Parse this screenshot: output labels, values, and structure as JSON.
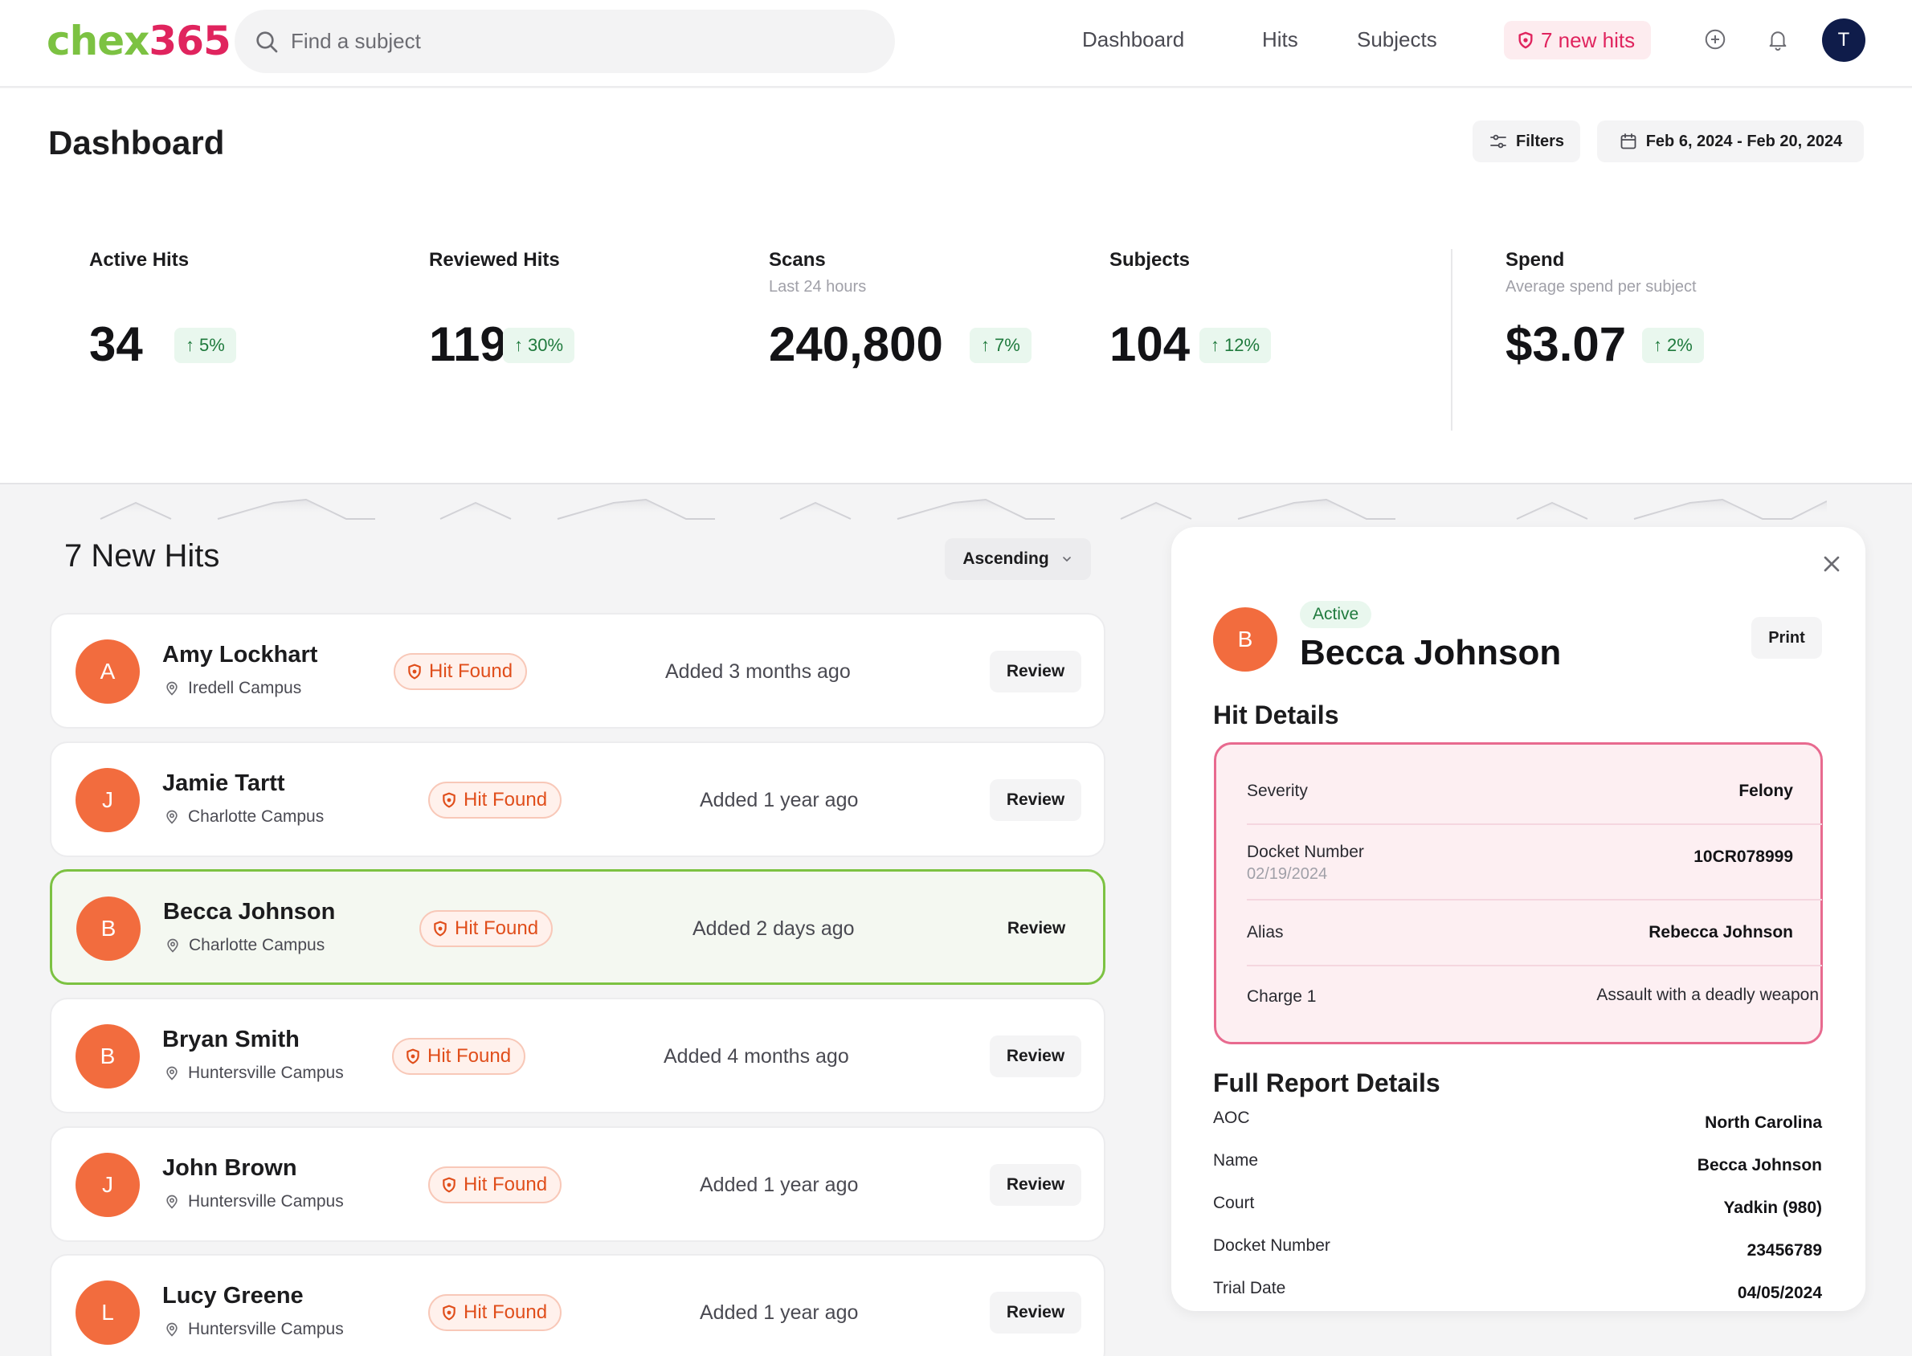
{
  "brand": {
    "part1": "chex",
    "part2": "365",
    "color1": "#7cc242",
    "color2": "#e0245e"
  },
  "search": {
    "placeholder": "Find a subject",
    "icon": "search-icon"
  },
  "nav": {
    "items": [
      "Dashboard",
      "Hits",
      "Subjects"
    ],
    "new_hits_label": "7 new hits",
    "icons": [
      "plus-circle-icon",
      "bell-icon"
    ],
    "avatar_initial": "T"
  },
  "header": {
    "title": "Dashboard",
    "filters_label": "Filters",
    "date_range": "Feb 6, 2024 - Feb 20, 2024"
  },
  "stats": [
    {
      "label": "Active Hits",
      "sub": "",
      "value": "34",
      "delta": "5%"
    },
    {
      "label": "Reviewed Hits",
      "sub": "",
      "value": "119",
      "delta": "30%"
    },
    {
      "label": "Scans",
      "sub": "Last 24 hours",
      "value": "240,800",
      "delta": "7%"
    },
    {
      "label": "Subjects",
      "sub": "",
      "value": "104",
      "delta": "12%"
    },
    {
      "label": "Spend",
      "sub": "Average spend per subject",
      "value": "$3.07",
      "delta": "2%"
    }
  ],
  "hits": {
    "title": "7 New Hits",
    "sort_label": "Ascending",
    "badge_label": "Hit Found",
    "review_label": "Review",
    "items": [
      {
        "initial": "A",
        "name": "Amy Lockhart",
        "campus": "Iredell Campus",
        "added": "Added 3 months ago",
        "selected": false
      },
      {
        "initial": "J",
        "name": "Jamie Tartt",
        "campus": "Charlotte Campus",
        "added": "Added 1 year ago",
        "selected": false
      },
      {
        "initial": "B",
        "name": "Becca Johnson",
        "campus": "Charlotte Campus",
        "added": "Added 2 days ago",
        "selected": true
      },
      {
        "initial": "B",
        "name": "Bryan Smith",
        "campus": "Huntersville Campus",
        "added": "Added 4 months ago",
        "selected": false
      },
      {
        "initial": "J",
        "name": "John Brown",
        "campus": "Huntersville Campus",
        "added": "Added 1 year ago",
        "selected": false
      },
      {
        "initial": "L",
        "name": "Lucy Greene",
        "campus": "Huntersville Campus",
        "added": "Added 1 year ago",
        "selected": false
      }
    ]
  },
  "detail": {
    "initial": "B",
    "status": "Active",
    "name": "Becca Johnson",
    "print_label": "Print",
    "hit_details_title": "Hit Details",
    "hit_details": {
      "severity_label": "Severity",
      "severity": "Felony",
      "docket_label": "Docket Number",
      "docket_date": "02/19/2024",
      "docket": "10CR078999",
      "alias_label": "Alias",
      "alias": "Rebecca Johnson",
      "charge_label": "Charge 1",
      "charge": "Assault with a deadly weapon"
    },
    "full_report_title": "Full Report Details",
    "full_report": [
      {
        "label": "AOC",
        "value": "North Carolina"
      },
      {
        "label": "Name",
        "value": "Becca Johnson"
      },
      {
        "label": "Court",
        "value": "Yadkin (980)"
      },
      {
        "label": "Docket Number",
        "value": "23456789"
      },
      {
        "label": "Trial Date",
        "value": "04/05/2024"
      }
    ]
  }
}
